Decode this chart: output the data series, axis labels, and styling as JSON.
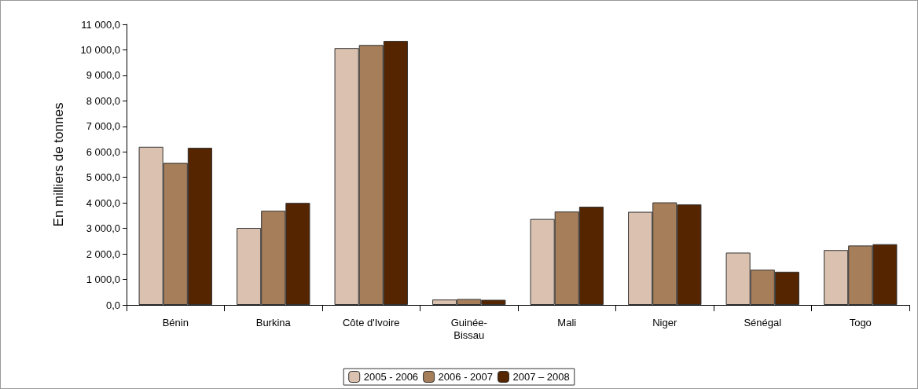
{
  "chart_data": {
    "type": "bar",
    "ylabel": "En milliers de tonnes",
    "categories": [
      "Bénin",
      "Burkina",
      "Côte d'Ivoire",
      "Guinée-Bissau",
      "Mali",
      "Niger",
      "Sénégal",
      "Togo"
    ],
    "series": [
      {
        "name": "2005 - 2006",
        "color": "#dbc2b0",
        "values": [
          6200,
          3020,
          10070,
          210,
          3370,
          3650,
          2050,
          2150
        ]
      },
      {
        "name": "2006 - 2007",
        "color": "#a67e5a",
        "values": [
          5570,
          3690,
          10190,
          230,
          3660,
          4020,
          1380,
          2330
        ]
      },
      {
        "name": "2007 – 2008",
        "color": "#552500",
        "values": [
          6160,
          4000,
          10350,
          200,
          3850,
          3940,
          1300,
          2380
        ]
      }
    ],
    "ylim": [
      0,
      11000
    ],
    "yticks": [
      {
        "value": 0,
        "label": "0,0"
      },
      {
        "value": 1000,
        "label": "1 000,0"
      },
      {
        "value": 2000,
        "label": "2 000,0"
      },
      {
        "value": 3000,
        "label": "3 000,0"
      },
      {
        "value": 4000,
        "label": "4 000,0"
      },
      {
        "value": 5000,
        "label": "5 000,0"
      },
      {
        "value": 6000,
        "label": "6 000,0"
      },
      {
        "value": 7000,
        "label": "7 000,0"
      },
      {
        "value": 8000,
        "label": "8 000,0"
      },
      {
        "value": 9000,
        "label": "9 000,0"
      },
      {
        "value": 10000,
        "label": "10 000,0"
      },
      {
        "value": 11000,
        "label": "11 000,0"
      }
    ],
    "grid": false,
    "legend": "bottom"
  }
}
